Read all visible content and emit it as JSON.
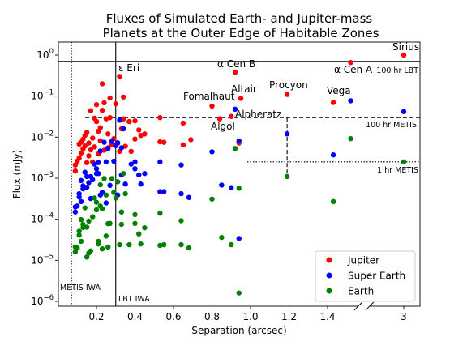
{
  "chart_data": {
    "type": "scatter",
    "title_lines": [
      "Fluxes of Simulated Earth- and Jupiter-mass",
      "Planets at the Outer Edge of Habitable Zones"
    ],
    "xlabel": "Separation (arcsec)",
    "ylabel": "Flux (mJy)",
    "x_scale": "linear-broken",
    "x_break": [
      1.55,
      2.9
    ],
    "x_ticks": [
      0.2,
      0.4,
      0.6,
      0.8,
      1.0,
      1.2,
      1.4,
      3
    ],
    "x_tick_labels": [
      "0.2",
      "0.4",
      "0.6",
      "0.8",
      "1.0",
      "1.2",
      "1.4",
      "3"
    ],
    "y_scale": "log",
    "ylim": [
      5e-07,
      3
    ],
    "y_ticks": [
      1e-06,
      1e-05,
      0.0001,
      0.001,
      0.01,
      0.1,
      1
    ],
    "y_tick_labels": [
      {
        "base": "10",
        "exp": "−6"
      },
      {
        "base": "10",
        "exp": "−5"
      },
      {
        "base": "10",
        "exp": "−4"
      },
      {
        "base": "10",
        "exp": "−3"
      },
      {
        "base": "10",
        "exp": "−2"
      },
      {
        "base": "10",
        "exp": "−1"
      },
      {
        "base": "10",
        "exp": "0"
      }
    ],
    "legend_position": "lower-right",
    "series": [
      {
        "name": "Jupiter",
        "color": "#ff0000",
        "points": [
          [
            0.09,
            0.0015
          ],
          [
            0.09,
            0.0021
          ],
          [
            0.1,
            0.0026
          ],
          [
            0.11,
            0.0031
          ],
          [
            0.11,
            0.0068
          ],
          [
            0.12,
            0.0041
          ],
          [
            0.12,
            0.0075
          ],
          [
            0.13,
            0.0052
          ],
          [
            0.13,
            0.0089
          ],
          [
            0.14,
            0.011
          ],
          [
            0.14,
            0.0061
          ],
          [
            0.15,
            0.013
          ],
          [
            0.15,
            0.0024
          ],
          [
            0.16,
            0.0035
          ],
          [
            0.16,
            0.0072
          ],
          [
            0.17,
            0.0049
          ],
          [
            0.17,
            0.044
          ],
          [
            0.18,
            0.0025
          ],
          [
            0.18,
            0.0095
          ],
          [
            0.19,
            0.0058
          ],
          [
            0.19,
            0.029
          ],
          [
            0.2,
            0.062
          ],
          [
            0.2,
            0.024
          ],
          [
            0.21,
            0.014
          ],
          [
            0.21,
            0.0039
          ],
          [
            0.22,
            0.017
          ],
          [
            0.22,
            0.0082
          ],
          [
            0.23,
            0.2
          ],
          [
            0.23,
            0.045
          ],
          [
            0.24,
            0.069
          ],
          [
            0.24,
            0.0048
          ],
          [
            0.25,
            0.028
          ],
          [
            0.26,
            0.0055
          ],
          [
            0.26,
            0.012
          ],
          [
            0.27,
            0.09
          ],
          [
            0.27,
            0.03
          ],
          [
            0.28,
            0.0065
          ],
          [
            0.29,
            0.0092
          ],
          [
            0.3,
            0.065
          ],
          [
            0.31,
            0.0071
          ],
          [
            0.32,
            0.3
          ],
          [
            0.32,
            0.0045
          ],
          [
            0.33,
            0.016
          ],
          [
            0.34,
            0.095
          ],
          [
            0.34,
            0.028
          ],
          [
            0.35,
            0.006
          ],
          [
            0.37,
            0.024
          ],
          [
            0.38,
            0.0045
          ],
          [
            0.4,
            0.025
          ],
          [
            0.4,
            0.009
          ],
          [
            0.42,
            0.015
          ],
          [
            0.43,
            0.011
          ],
          [
            0.45,
            0.012
          ],
          [
            0.53,
            0.03
          ],
          [
            0.53,
            0.0077
          ],
          [
            0.55,
            0.0075
          ],
          [
            0.65,
            0.022
          ],
          [
            0.65,
            0.0065
          ],
          [
            0.69,
            0.0087
          ],
          [
            0.8,
            0.057
          ],
          [
            0.84,
            0.028
          ],
          [
            0.9,
            0.032
          ],
          [
            0.92,
            0.38
          ],
          [
            0.94,
            0.0072
          ],
          [
            0.95,
            0.088
          ],
          [
            1.19,
            0.11
          ],
          [
            1.43,
            0.07
          ],
          [
            1.52,
            0.66
          ],
          [
            3.0,
            1.0
          ]
        ]
      },
      {
        "name": "Super Earth",
        "color": "#0000ff",
        "points": [
          [
            0.09,
            0.00015
          ],
          [
            0.09,
            0.0002
          ],
          [
            0.1,
            0.00021
          ],
          [
            0.11,
            0.00035
          ],
          [
            0.11,
            0.00042
          ],
          [
            0.12,
            0.00027
          ],
          [
            0.12,
            0.00088
          ],
          [
            0.13,
            0.00065
          ],
          [
            0.13,
            0.00055
          ],
          [
            0.14,
            0.0014
          ],
          [
            0.15,
            0.0006
          ],
          [
            0.15,
            0.0011
          ],
          [
            0.16,
            0.00078
          ],
          [
            0.17,
            0.00032
          ],
          [
            0.17,
            0.0011
          ],
          [
            0.18,
            0.00092
          ],
          [
            0.19,
            0.0022
          ],
          [
            0.2,
            0.0017
          ],
          [
            0.2,
            0.0013
          ],
          [
            0.21,
            0.0024
          ],
          [
            0.21,
            0.0013
          ],
          [
            0.22,
            0.0046
          ],
          [
            0.22,
            0.00039
          ],
          [
            0.23,
            0.00045
          ],
          [
            0.24,
            0.0075
          ],
          [
            0.25,
            0.00025
          ],
          [
            0.25,
            0.0025
          ],
          [
            0.26,
            0.0053
          ],
          [
            0.27,
            0.00067
          ],
          [
            0.28,
            0.0079
          ],
          [
            0.29,
            0.0026
          ],
          [
            0.3,
            0.0062
          ],
          [
            0.31,
            0.0073
          ],
          [
            0.31,
            0.00039
          ],
          [
            0.32,
            0.026
          ],
          [
            0.33,
            0.0055
          ],
          [
            0.33,
            0.0012
          ],
          [
            0.34,
            0.016
          ],
          [
            0.35,
            0.00072
          ],
          [
            0.38,
            0.0022
          ],
          [
            0.4,
            0.0025
          ],
          [
            0.4,
            0.0017
          ],
          [
            0.42,
            0.0012
          ],
          [
            0.43,
            0.00072
          ],
          [
            0.45,
            0.0013
          ],
          [
            0.53,
            0.0025
          ],
          [
            0.53,
            0.00047
          ],
          [
            0.55,
            0.00047
          ],
          [
            0.64,
            0.0021
          ],
          [
            0.64,
            0.00042
          ],
          [
            0.68,
            0.00034
          ],
          [
            0.8,
            0.0044
          ],
          [
            0.85,
            0.00068
          ],
          [
            0.9,
            0.00059
          ],
          [
            0.92,
            0.048
          ],
          [
            0.94,
            0.0081
          ],
          [
            0.94,
            3.4e-05
          ],
          [
            1.19,
            0.012
          ],
          [
            1.43,
            0.0037
          ],
          [
            1.52,
            0.077
          ],
          [
            3.0,
            0.042
          ]
        ]
      },
      {
        "name": "Earth",
        "color": "#008000",
        "points": [
          [
            0.09,
            1.6e-05
          ],
          [
            0.09,
            2.1e-05
          ],
          [
            0.1,
            2e-05
          ],
          [
            0.11,
            4.1e-05
          ],
          [
            0.11,
            5.1e-05
          ],
          [
            0.12,
            2.9e-05
          ],
          [
            0.12,
            9.8e-05
          ],
          [
            0.13,
            7.5e-05
          ],
          [
            0.13,
            6.3e-05
          ],
          [
            0.14,
            0.00019
          ],
          [
            0.15,
            6.4e-05
          ],
          [
            0.15,
            1.2e-05
          ],
          [
            0.16,
            9e-05
          ],
          [
            0.16,
            1.5e-05
          ],
          [
            0.17,
            1.7e-05
          ],
          [
            0.18,
            0.000115
          ],
          [
            0.19,
            0.00033
          ],
          [
            0.2,
            0.00026
          ],
          [
            0.2,
            0.00017
          ],
          [
            0.21,
            2.9e-05
          ],
          [
            0.21,
            2.5e-05
          ],
          [
            0.22,
            0.00069
          ],
          [
            0.22,
            0.00021
          ],
          [
            0.23,
            0.00018
          ],
          [
            0.23,
            1.9e-05
          ],
          [
            0.24,
            0.00098
          ],
          [
            0.25,
            3.9e-05
          ],
          [
            0.25,
            0.00039
          ],
          [
            0.26,
            7.8e-05
          ],
          [
            0.26,
            2.1e-05
          ],
          [
            0.27,
            7.9e-05
          ],
          [
            0.28,
            0.00098
          ],
          [
            0.29,
            0.00045
          ],
          [
            0.3,
            0.00033
          ],
          [
            0.31,
            0.00082
          ],
          [
            0.32,
            2.4e-05
          ],
          [
            0.33,
            7.5e-05
          ],
          [
            0.33,
            0.00015
          ],
          [
            0.34,
            0.0013
          ],
          [
            0.35,
            0.00042
          ],
          [
            0.37,
            2.4e-05
          ],
          [
            0.4,
            0.00013
          ],
          [
            0.4,
            7.9e-05
          ],
          [
            0.42,
            4.4e-05
          ],
          [
            0.43,
            2.5e-05
          ],
          [
            0.45,
            6.2e-05
          ],
          [
            0.53,
            0.00014
          ],
          [
            0.53,
            2.3e-05
          ],
          [
            0.55,
            2.4e-05
          ],
          [
            0.64,
            9.2e-05
          ],
          [
            0.64,
            2.4e-05
          ],
          [
            0.68,
            2e-05
          ],
          [
            0.8,
            0.00031
          ],
          [
            0.85,
            3.6e-05
          ],
          [
            0.9,
            2.4e-05
          ],
          [
            0.92,
            0.0053
          ],
          [
            0.94,
            0.00057
          ],
          [
            0.94,
            1.6e-06
          ],
          [
            1.19,
            0.0011
          ],
          [
            1.43,
            0.00027
          ],
          [
            1.52,
            0.0092
          ],
          [
            3.0,
            0.0025
          ]
        ]
      }
    ],
    "star_labels": [
      {
        "text": "Sirius",
        "x": 3.0,
        "y": 1.0
      },
      {
        "text": "α Cen B",
        "x": 0.92,
        "y": 0.38
      },
      {
        "text": "α Cen A",
        "x": 1.52,
        "y": 0.66
      },
      {
        "text": "ε Eri",
        "x": 0.32,
        "y": 0.3
      },
      {
        "text": "Fomalhaut",
        "x": 0.8,
        "y": 0.057
      },
      {
        "text": "Altair",
        "x": 0.95,
        "y": 0.088
      },
      {
        "text": "Procyon",
        "x": 1.19,
        "y": 0.11
      },
      {
        "text": "Vega",
        "x": 1.43,
        "y": 0.07
      },
      {
        "text": "Alpheratz",
        "x": 0.92,
        "y": 0.048
      },
      {
        "text": "Algol",
        "x": 0.84,
        "y": 0.028
      }
    ],
    "reference_lines": [
      {
        "label": "100 hr LBT",
        "orientation": "horizontal",
        "y": 0.7,
        "style": "solid"
      },
      {
        "label": "100 hr METIS",
        "orientation": "horizontal",
        "y": 0.03,
        "style": "dashed"
      },
      {
        "label": "1 hr METIS",
        "orientation": "horizontal",
        "y": 0.0025,
        "style": "dotted"
      },
      {
        "label": "METIS IWA",
        "orientation": "vertical",
        "x": 0.07,
        "style": "dotted"
      },
      {
        "label": "LBT IWA",
        "orientation": "vertical",
        "x": 0.3,
        "style": "solid"
      }
    ],
    "procyon_marker": {
      "x": 1.19,
      "y_top": 0.03,
      "y_bottom": 0.0011
    }
  }
}
